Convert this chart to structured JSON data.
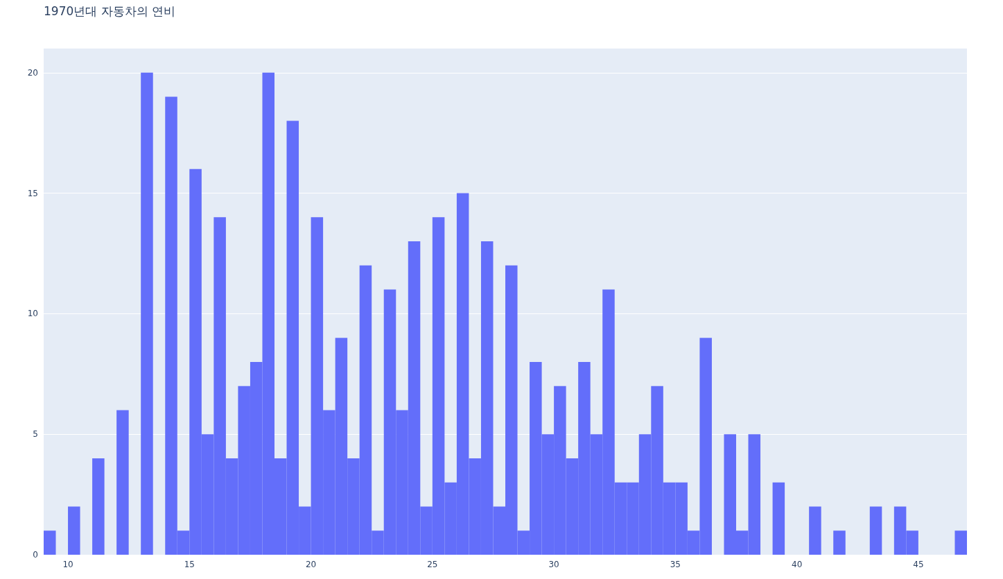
{
  "chart_data": {
    "type": "histogram",
    "title": "1970년대 자동차의 연비",
    "bins": [
      9,
      9.5,
      10,
      10.5,
      11,
      11.5,
      12,
      12.5,
      13,
      13.5,
      14,
      14.5,
      15,
      15.5,
      16,
      16.5,
      17,
      17.5,
      18,
      18.5,
      19,
      19.5,
      20,
      20.5,
      21,
      21.5,
      22,
      22.5,
      23,
      23.5,
      24,
      24.5,
      25,
      25.5,
      26,
      26.5,
      27,
      27.5,
      28,
      28.5,
      29,
      29.5,
      30,
      30.5,
      31,
      31.5,
      32,
      32.5,
      33,
      33.5,
      34,
      34.5,
      35,
      35.5,
      36,
      36.5,
      37,
      37.5,
      38,
      38.5,
      39,
      39.5,
      40,
      40.5,
      41,
      41.5,
      42,
      42.5,
      43,
      43.5,
      44,
      44.5,
      45,
      45.5,
      46,
      46.5,
      47
    ],
    "values": [
      1,
      0,
      2,
      0,
      4,
      0,
      6,
      0,
      20,
      0,
      19,
      1,
      16,
      5,
      14,
      4,
      7,
      8,
      20,
      4,
      18,
      2,
      14,
      6,
      9,
      4,
      12,
      1,
      11,
      6,
      13,
      2,
      14,
      3,
      15,
      4,
      13,
      2,
      12,
      1,
      8,
      5,
      7,
      4,
      8,
      5,
      11,
      3,
      3,
      5,
      7,
      3,
      3,
      1,
      9,
      0,
      5,
      1,
      5,
      0,
      3,
      0,
      0,
      2,
      0,
      1,
      0,
      0,
      2,
      0,
      2,
      1,
      0,
      0,
      0,
      1
    ],
    "color": "#636efa",
    "xlim": [
      9,
      47
    ],
    "xticks": [
      10,
      15,
      20,
      25,
      30,
      35,
      40,
      45
    ],
    "ylim": [
      0,
      21
    ],
    "yticks": [
      0,
      5,
      10,
      15,
      20
    ],
    "grid": "y"
  }
}
